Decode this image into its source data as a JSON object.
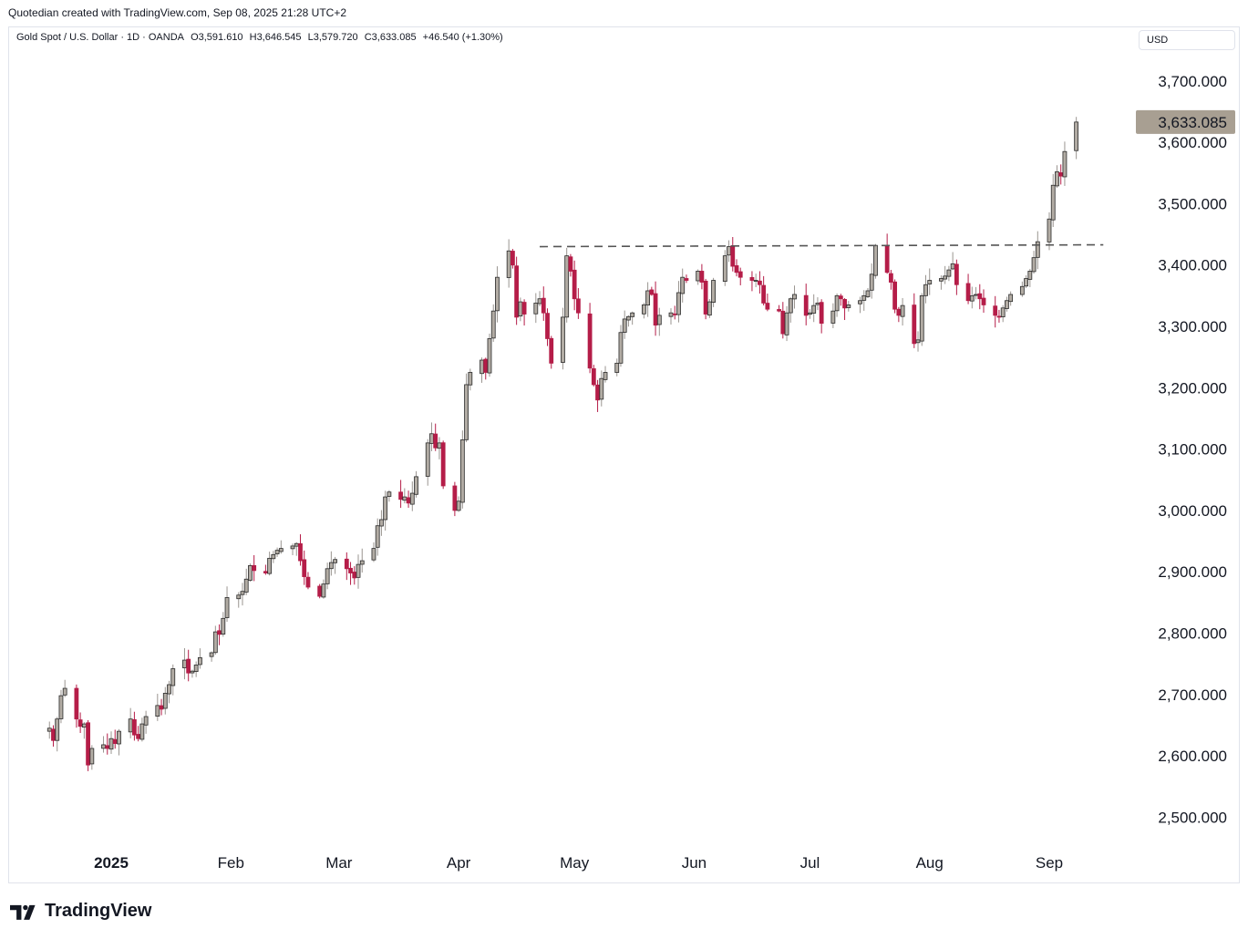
{
  "header": {
    "credit": "Quotedian created with TradingView.com, Sep 08, 2025 21:28 UTC+2"
  },
  "legend": {
    "symbol": "Gold Spot / U.S. Dollar · 1D · OANDA",
    "open": "O3,591.610",
    "high": "H3,646.545",
    "low": "L3,579.720",
    "close": "C3,633.085",
    "change": "+46.540 (+1.30%)"
  },
  "currency_button": "USD",
  "footer": {
    "brand": "TradingView"
  },
  "colors": {
    "up": "#b2aca4",
    "down": "#b51d48",
    "wick_up": "#9a9590",
    "wick_down": "#b51d48",
    "last_price": "#a89f92",
    "resistance": "#555555"
  },
  "chart_data": {
    "type": "candlestick",
    "title": "Gold Spot / U.S. Dollar · 1D · OANDA",
    "ylim": [
      2450,
      3780
    ],
    "y_ticks": [
      "2,500.000",
      "2,600.000",
      "2,700.000",
      "2,800.000",
      "2,900.000",
      "3,000.000",
      "3,100.000",
      "3,200.000",
      "3,300.000",
      "3,400.000",
      "3,500.000",
      "3,600.000",
      "3,700.000"
    ],
    "y_tick_values": [
      2500,
      2600,
      2700,
      2800,
      2900,
      3000,
      3100,
      3200,
      3300,
      3400,
      3500,
      3600,
      3700
    ],
    "x_ticks": [
      {
        "label": "2025",
        "date": "2025-01-01",
        "bold": true
      },
      {
        "label": "Feb",
        "date": "2025-02-01",
        "bold": false
      },
      {
        "label": "Mar",
        "date": "2025-03-01",
        "bold": false
      },
      {
        "label": "Apr",
        "date": "2025-04-01",
        "bold": false
      },
      {
        "label": "May",
        "date": "2025-05-01",
        "bold": false
      },
      {
        "label": "Jun",
        "date": "2025-06-01",
        "bold": false
      },
      {
        "label": "Jul",
        "date": "2025-07-01",
        "bold": false
      },
      {
        "label": "Aug",
        "date": "2025-08-01",
        "bold": false
      },
      {
        "label": "Sep",
        "date": "2025-09-01",
        "bold": false
      }
    ],
    "last_price": 3633.085,
    "last_price_label": "3,633.085",
    "resistance_level": 3430,
    "resistance_start": "2025-04-22",
    "resistance_end": "2025-09-15",
    "closes": [
      2645,
      2625,
      2660,
      2698,
      2710,
      2660,
      2648,
      2652,
      2585,
      2612,
      2618,
      2612,
      2628,
      2620,
      2640,
      2660,
      2634,
      2628,
      2652,
      2664,
      2682,
      2676,
      2702,
      2716,
      2742,
      2756,
      2735,
      2738,
      2748,
      2760,
      2768,
      2802,
      2798,
      2824,
      2858,
      2862,
      2868,
      2888,
      2910,
      2902,
      2898,
      2922,
      2928,
      2935,
      2938,
      2942,
      2946,
      2918,
      2892,
      2875,
      2860,
      2880,
      2905,
      2915,
      2920,
      2905,
      2898,
      2890,
      2912,
      2918,
      2938,
      2975,
      2985,
      3022,
      3030,
      3018,
      3022,
      3012,
      3028,
      3055,
      3110,
      3125,
      3102,
      3110,
      3040,
      3000,
      3015,
      3115,
      3205,
      3225,
      3245,
      3225,
      3280,
      3325,
      3380,
      3423,
      3400,
      3315,
      3340,
      3320,
      3338,
      3345,
      3322,
      3280,
      3240,
      3315,
      3415,
      3390,
      3345,
      3322,
      3232,
      3205,
      3180,
      3215,
      3225,
      3240,
      3290,
      3312,
      3316,
      3322,
      3335,
      3358,
      3352,
      3302,
      3318,
      3322,
      3320,
      3355,
      3380,
      3375,
      3390,
      3372,
      3320,
      3340,
      3375,
      3415,
      3430,
      3398,
      3388,
      3380,
      3375,
      3375,
      3368,
      3338,
      3328,
      3325,
      3288,
      3322,
      3345,
      3352,
      3318,
      3322,
      3334,
      3338,
      3305,
      3325,
      3350,
      3345,
      3330,
      3335,
      3342,
      3350,
      3358,
      3385,
      3432,
      3388,
      3372,
      3328,
      3318,
      3334,
      3272,
      3278,
      3350,
      3368,
      3375,
      3378,
      3382,
      3392,
      3402,
      3368,
      3342,
      3350,
      3352,
      3345,
      3335,
      3318,
      3316,
      3330,
      3342,
      3352,
      3365,
      3378,
      3390,
      3412,
      3438,
      3475,
      3530,
      3552,
      3545,
      3585,
      3633.085
    ]
  }
}
